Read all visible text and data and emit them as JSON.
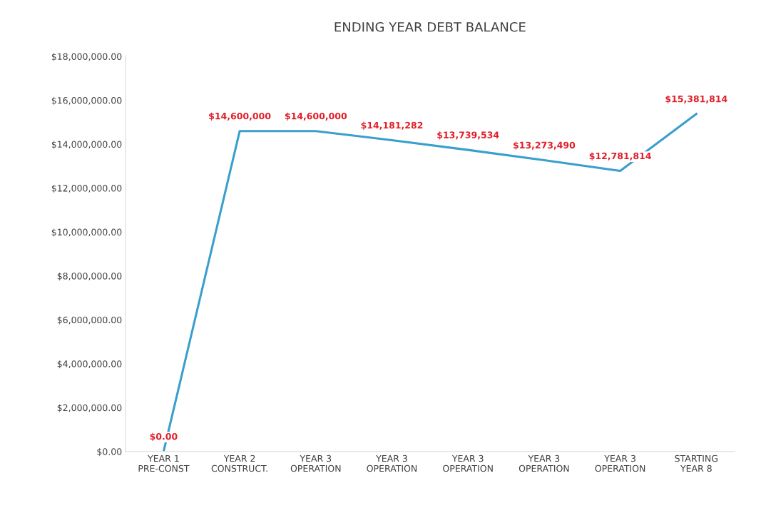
{
  "chart_data": {
    "type": "line",
    "title": "ENDING YEAR DEBT BALANCE",
    "categories": [
      "YEAR 1\nPRE-CONST",
      "YEAR 2\nCONSTRUCT.",
      "YEAR 3\nOPERATION",
      "YEAR 3\nOPERATION",
      "YEAR 3\nOPERATION",
      "YEAR 3\nOPERATION",
      "YEAR 3\nOPERATION",
      "STARTING\nYEAR 8"
    ],
    "series": [
      {
        "color": "#3a9fcc",
        "values": [
          0,
          14600000,
          14600000,
          14181282,
          13739534,
          13273490,
          12781814,
          15381814
        ],
        "value_labels": [
          "$0.00",
          "$14,600,000",
          "$14,600,000",
          "$14,181,282",
          "$13,739,534",
          "$13,273,490",
          "$12,781,814",
          "$15,381,814"
        ]
      }
    ],
    "ylim": [
      0,
      18000000
    ],
    "yticks": [
      {
        "value": 0,
        "label": "$0.00"
      },
      {
        "value": 2000000,
        "label": "$2,000,000.00"
      },
      {
        "value": 4000000,
        "label": "$4,000,000.00"
      },
      {
        "value": 6000000,
        "label": "$6,000,000.00"
      },
      {
        "value": 8000000,
        "label": "$8,000,000.00"
      },
      {
        "value": 10000000,
        "label": "$10,000,000.00"
      },
      {
        "value": 12000000,
        "label": "$12,000,000.00"
      },
      {
        "value": 14000000,
        "label": "$14,000,000.00"
      },
      {
        "value": 16000000,
        "label": "$16,000,000.00"
      },
      {
        "value": 18000000,
        "label": "$18,000,000.00"
      }
    ],
    "grid": false,
    "legend": false,
    "marker": "none",
    "line_style": "solid"
  }
}
